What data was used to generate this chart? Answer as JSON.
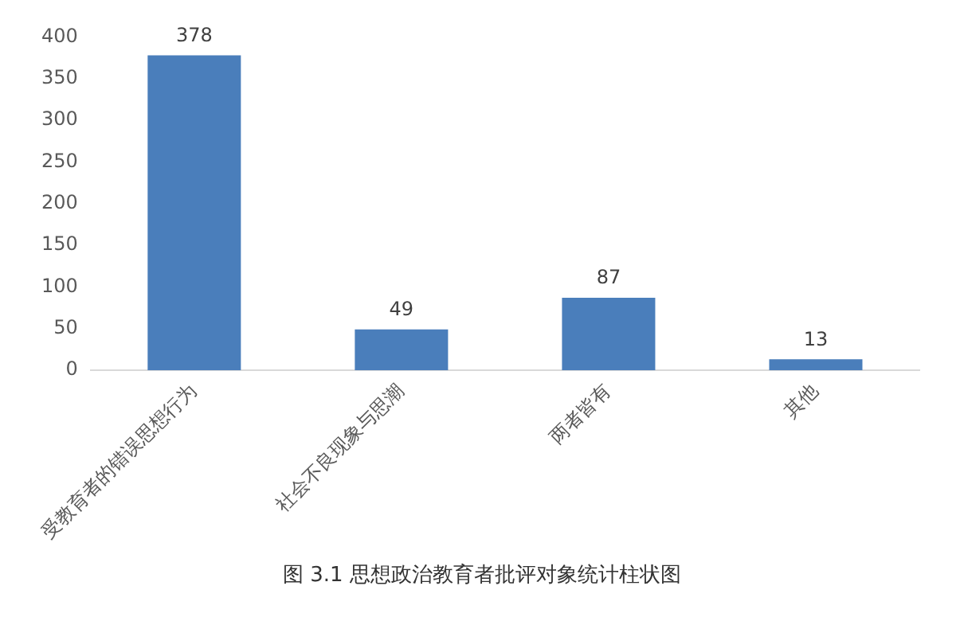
{
  "chart_data": {
    "type": "bar",
    "categories": [
      "受教育者的错误思想行为",
      "社会不良现象与思潮",
      "两者皆有",
      "其他"
    ],
    "values": [
      378,
      49,
      87,
      13
    ],
    "color": "#4a7ebb",
    "ylim": [
      0,
      400
    ],
    "yticks": [
      0,
      50,
      100,
      150,
      200,
      250,
      300,
      350,
      400
    ],
    "grid": false,
    "data_labels": true,
    "annotations": [
      "图 3.1  思想政治教育者批评对象统计柱状图"
    ]
  }
}
